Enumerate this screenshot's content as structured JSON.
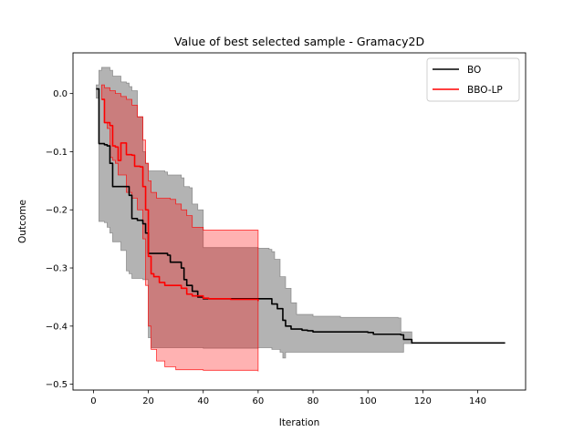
{
  "chart_data": {
    "type": "line",
    "title": "Value of best selected sample - Gramacy2D",
    "xlabel": "Iteration",
    "ylabel": "Outcome",
    "xlim": [
      -7.45,
      157.45
    ],
    "ylim": [
      -0.51,
      0.07
    ],
    "xticks": [
      0,
      20,
      40,
      60,
      80,
      100,
      120,
      140
    ],
    "yticks": [
      0.0,
      -0.1,
      -0.2,
      -0.3,
      -0.4,
      -0.5
    ],
    "ytick_labels": [
      "0.0",
      "−0.1",
      "−0.2",
      "−0.3",
      "−0.4",
      "−0.5"
    ],
    "grid": false,
    "legend_position": "top-right",
    "series": [
      {
        "name": "BO",
        "color": "#000000",
        "band_color": "#808080",
        "mean": [
          [
            1,
            0.008
          ],
          [
            2,
            -0.086
          ],
          [
            4,
            -0.088
          ],
          [
            5,
            -0.09
          ],
          [
            6,
            -0.12
          ],
          [
            7,
            -0.16
          ],
          [
            12,
            -0.16
          ],
          [
            13,
            -0.175
          ],
          [
            14,
            -0.215
          ],
          [
            16,
            -0.218
          ],
          [
            18,
            -0.224
          ],
          [
            19,
            -0.24
          ],
          [
            20,
            -0.275
          ],
          [
            27,
            -0.278
          ],
          [
            28,
            -0.29
          ],
          [
            32,
            -0.3
          ],
          [
            33,
            -0.32
          ],
          [
            34,
            -0.33
          ],
          [
            36,
            -0.34
          ],
          [
            38,
            -0.35
          ],
          [
            40,
            -0.353
          ],
          [
            60,
            -0.353
          ],
          [
            65,
            -0.362
          ],
          [
            67,
            -0.37
          ],
          [
            69,
            -0.39
          ],
          [
            70,
            -0.4
          ],
          [
            72,
            -0.405
          ],
          [
            75,
            -0.405
          ],
          [
            76,
            -0.407
          ],
          [
            78,
            -0.408
          ],
          [
            80,
            -0.41
          ],
          [
            100,
            -0.411
          ],
          [
            102,
            -0.414
          ],
          [
            112,
            -0.415
          ],
          [
            113,
            -0.423
          ],
          [
            116,
            -0.429
          ],
          [
            150,
            -0.429
          ]
        ],
        "lower": [
          [
            1,
            -0.008
          ],
          [
            2,
            -0.22
          ],
          [
            4,
            -0.222
          ],
          [
            5,
            -0.23
          ],
          [
            6,
            -0.24
          ],
          [
            7,
            -0.255
          ],
          [
            10,
            -0.27
          ],
          [
            12,
            -0.305
          ],
          [
            13,
            -0.31
          ],
          [
            14,
            -0.318
          ],
          [
            18,
            -0.32
          ],
          [
            20,
            -0.42
          ],
          [
            21,
            -0.437
          ],
          [
            40,
            -0.438
          ],
          [
            60,
            -0.437
          ],
          [
            65,
            -0.44
          ],
          [
            68,
            -0.445
          ],
          [
            69,
            -0.455
          ],
          [
            70,
            -0.445
          ],
          [
            100,
            -0.445
          ],
          [
            112,
            -0.445
          ],
          [
            113,
            -0.43
          ],
          [
            116,
            -0.43
          ]
        ],
        "upper": [
          [
            1,
            0.015
          ],
          [
            2,
            0.04
          ],
          [
            3,
            0.045
          ],
          [
            6,
            0.04
          ],
          [
            7,
            0.03
          ],
          [
            10,
            0.02
          ],
          [
            12,
            0.018
          ],
          [
            13,
            0.012
          ],
          [
            14,
            0.005
          ],
          [
            16,
            -0.04
          ],
          [
            18,
            -0.1
          ],
          [
            19,
            -0.12
          ],
          [
            20,
            -0.133
          ],
          [
            26,
            -0.135
          ],
          [
            27,
            -0.14
          ],
          [
            32,
            -0.145
          ],
          [
            33,
            -0.16
          ],
          [
            35,
            -0.162
          ],
          [
            36,
            -0.19
          ],
          [
            38,
            -0.2
          ],
          [
            40,
            -0.265
          ],
          [
            60,
            -0.266
          ],
          [
            64,
            -0.268
          ],
          [
            65,
            -0.272
          ],
          [
            66,
            -0.285
          ],
          [
            68,
            -0.315
          ],
          [
            70,
            -0.335
          ],
          [
            72,
            -0.36
          ],
          [
            74,
            -0.38
          ],
          [
            80,
            -0.383
          ],
          [
            90,
            -0.385
          ],
          [
            110,
            -0.385
          ],
          [
            111,
            -0.386
          ],
          [
            112,
            -0.41
          ],
          [
            116,
            -0.425
          ]
        ]
      },
      {
        "name": "BBO-LP",
        "color": "#ff0000",
        "band_color": "#ff0000",
        "mean": [
          [
            3,
            -0.01
          ],
          [
            4,
            -0.05
          ],
          [
            6,
            -0.055
          ],
          [
            7,
            -0.09
          ],
          [
            8,
            -0.092
          ],
          [
            9,
            -0.115
          ],
          [
            10,
            -0.085
          ],
          [
            11,
            -0.085
          ],
          [
            12,
            -0.105
          ],
          [
            14,
            -0.106
          ],
          [
            15,
            -0.125
          ],
          [
            17,
            -0.126
          ],
          [
            18,
            -0.16
          ],
          [
            19,
            -0.2
          ],
          [
            20,
            -0.28
          ],
          [
            21,
            -0.31
          ],
          [
            22,
            -0.315
          ],
          [
            24,
            -0.325
          ],
          [
            26,
            -0.33
          ],
          [
            30,
            -0.33
          ],
          [
            32,
            -0.335
          ],
          [
            34,
            -0.345
          ],
          [
            36,
            -0.348
          ],
          [
            40,
            -0.352
          ],
          [
            42,
            -0.353
          ],
          [
            50,
            -0.354
          ],
          [
            60,
            -0.357
          ]
        ],
        "lower": [
          [
            3,
            -0.01
          ],
          [
            4,
            -0.05
          ],
          [
            5,
            -0.06
          ],
          [
            6,
            -0.11
          ],
          [
            7,
            -0.115
          ],
          [
            8,
            -0.12
          ],
          [
            9,
            -0.14
          ],
          [
            10,
            -0.14
          ],
          [
            12,
            -0.17
          ],
          [
            14,
            -0.18
          ],
          [
            16,
            -0.2
          ],
          [
            18,
            -0.25
          ],
          [
            19,
            -0.33
          ],
          [
            20,
            -0.4
          ],
          [
            21,
            -0.44
          ],
          [
            23,
            -0.46
          ],
          [
            26,
            -0.47
          ],
          [
            30,
            -0.475
          ],
          [
            40,
            -0.476
          ],
          [
            60,
            -0.478
          ]
        ],
        "upper": [
          [
            3,
            0.015
          ],
          [
            4,
            0.01
          ],
          [
            6,
            0.005
          ],
          [
            8,
            0.0
          ],
          [
            10,
            -0.005
          ],
          [
            12,
            -0.01
          ],
          [
            14,
            -0.02
          ],
          [
            16,
            -0.04
          ],
          [
            18,
            -0.08
          ],
          [
            19,
            -0.12
          ],
          [
            20,
            -0.15
          ],
          [
            21,
            -0.17
          ],
          [
            23,
            -0.18
          ],
          [
            28,
            -0.182
          ],
          [
            30,
            -0.19
          ],
          [
            32,
            -0.2
          ],
          [
            34,
            -0.21
          ],
          [
            36,
            -0.23
          ],
          [
            40,
            -0.235
          ],
          [
            60,
            -0.235
          ]
        ]
      }
    ]
  }
}
